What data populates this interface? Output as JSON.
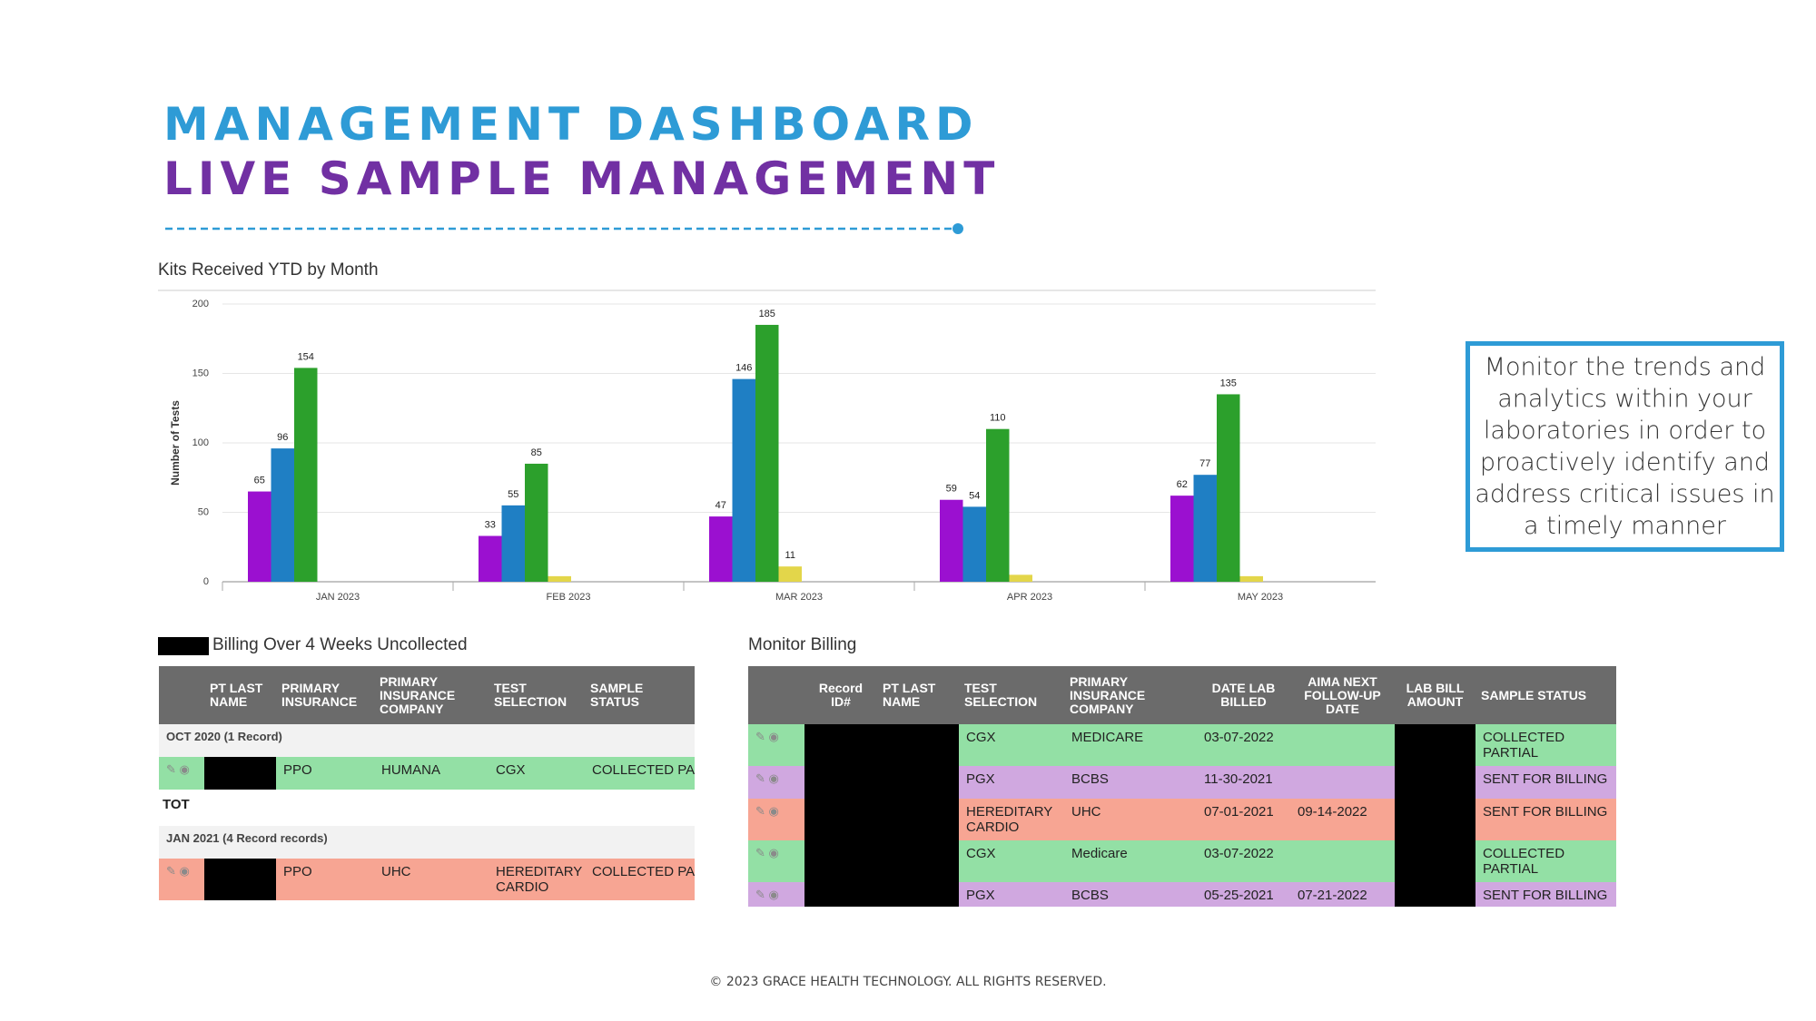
{
  "header": {
    "title": "MANAGEMENT DASHBOARD",
    "subtitle": "LIVE SAMPLE MANAGEMENT"
  },
  "chart_data": {
    "type": "bar",
    "title": "Kits Received YTD by Month",
    "y_label": "Number of Tests",
    "categories": [
      "JAN 2023",
      "FEB 2023",
      "MAR 2023",
      "APR 2023",
      "MAY 2023"
    ],
    "series": [
      {
        "color": "#9b10d0",
        "values": [
          65,
          33,
          47,
          59,
          62
        ]
      },
      {
        "color": "#1f7fc4",
        "values": [
          96,
          55,
          146,
          54,
          77
        ]
      },
      {
        "color": "#2ca02c",
        "values": [
          154,
          85,
          185,
          110,
          135
        ]
      },
      {
        "color": "#e3d64a",
        "values": [
          null,
          4,
          11,
          5,
          4
        ],
        "value_labels": [
          null,
          null,
          "11",
          null,
          null
        ]
      }
    ],
    "ylim": [
      0,
      200
    ],
    "yticks": [
      0,
      50,
      100,
      150,
      200
    ],
    "grid": true
  },
  "left_table": {
    "title": "Billing Over 4 Weeks Uncollected",
    "headers": [
      "PT LAST NAME",
      "PRIMARY INSURANCE",
      "PRIMARY INSURANCE COMPANY",
      "TEST SELECTION",
      "SAMPLE STATUS"
    ],
    "rows": [
      {
        "group": "OCT 2020 (1 Record)"
      },
      {
        "color": "#93e0a5",
        "cells": [
          "PPO",
          "HUMANA",
          "CGX",
          "COLLECTED PART"
        ]
      },
      {
        "total": "TOT"
      },
      {
        "group": "JAN 2021 (4 Record records)"
      },
      {
        "color": "#f7a593",
        "cells": [
          "PPO",
          "UHC",
          "HEREDITARY CARDIO",
          "COLLECTED PART"
        ]
      }
    ]
  },
  "right_table": {
    "title": "Monitor Billing",
    "headers": [
      "Record ID#",
      "PT LAST NAME",
      "TEST SELECTION",
      "PRIMARY INSURANCE COMPANY",
      "DATE LAB BILLED",
      "AIMA NEXT FOLLOW-UP DATE",
      "LAB BILL AMOUNT",
      "SAMPLE STATUS"
    ],
    "rows": [
      {
        "color": "#93e0a5",
        "test": "CGX",
        "insurance": "MEDICARE",
        "billed": "03-07-2022",
        "status": "COLLECTED PARTIAL"
      },
      {
        "color": "#d0a8e0",
        "test": "PGX",
        "insurance": "BCBS",
        "billed": "11-30-2021",
        "status": "SENT FOR BILLING"
      },
      {
        "color": "#f7a593",
        "test": "HEREDITARY CARDIO",
        "insurance": "UHC",
        "billed": "07-01-2021",
        "followup": "09-14-2022",
        "status": "SENT FOR BILLING"
      },
      {
        "color": "#93e0a5",
        "test": "CGX",
        "insurance": "Medicare",
        "billed": "03-07-2022",
        "status": "COLLECTED PARTIAL"
      },
      {
        "color": "#d0a8e0",
        "test": "PGX",
        "insurance": "BCBS",
        "billed": "05-25-2021",
        "followup": "07-21-2022",
        "status": "SENT FOR BILLING"
      }
    ]
  },
  "note": "Monitor the trends and analytics within your laboratories in order to proactively identify and address critical issues in a timely manner",
  "footer": "© 2023 GRACE HEALTH TECHNOLOGY. ALL RIGHTS RESERVED."
}
